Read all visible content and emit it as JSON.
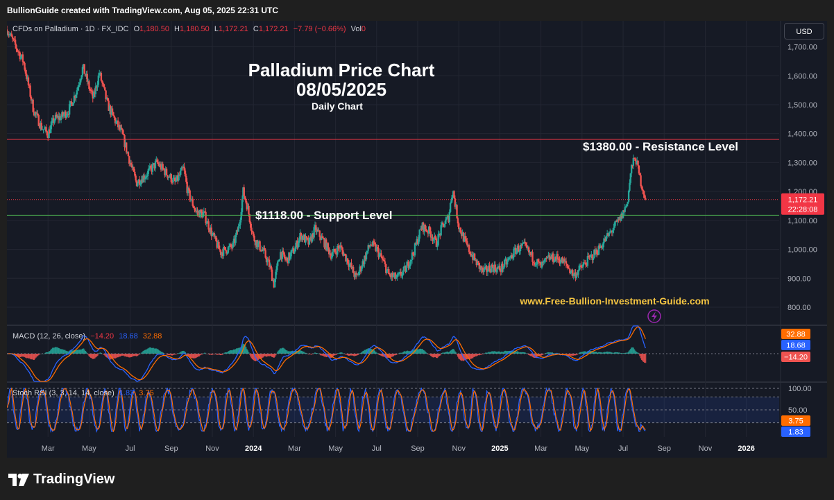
{
  "header": {
    "attribution": "BullionGuide created with TradingView.com, Aug 05, 2025 22:31 UTC"
  },
  "legend": {
    "symbol": "CFDs on Palladium · 1D · FX_IDC",
    "o_label": "O",
    "o": "1,180.50",
    "h_label": "H",
    "h": "1,180.50",
    "l_label": "L",
    "l": "1,172.21",
    "c_label": "C",
    "c": "1,172.21",
    "change": "−7.79 (−0.66%)",
    "vol_label": "Vol",
    "vol": "0"
  },
  "currency_button": "USD",
  "branding": {
    "name": "TradingView",
    "logo_icon": "tradingview-logo-icon"
  },
  "colors": {
    "up": "#26a69a",
    "down": "#ef5350",
    "resistance": "#f23645",
    "support": "#4caf50",
    "macd": "#2962ff",
    "signal": "#ff6d00",
    "stoch_k": "#2962ff",
    "stoch_d": "#ff6d00",
    "watermark": "#f5c542",
    "price_badge": "#f23645"
  },
  "chart_data": {
    "type": "candlestick",
    "title": "Palladium Price Chart",
    "subtitle_date": "08/05/2025",
    "subtitle_period": "Daily Chart",
    "watermark": "www.Free-Bullion-Investment-Guide.com",
    "currency": "USD",
    "y_ticks": [
      "1,700.00",
      "1,600.00",
      "1,500.00",
      "1,400.00",
      "1,300.00",
      "1,200.00",
      "1,100.00",
      "1,000.00",
      "900.00",
      "800.00"
    ],
    "ylim": [
      740,
      1790
    ],
    "x_ticks": [
      "Mar",
      "May",
      "Jul",
      "Sep",
      "Nov",
      "2024",
      "Mar",
      "May",
      "Jul",
      "Sep",
      "Nov",
      "2025",
      "Mar",
      "May",
      "Jul",
      "Sep",
      "Nov",
      "2026"
    ],
    "x_tick_months": [
      2,
      4,
      6,
      8,
      10,
      12,
      14,
      16,
      18,
      20,
      22,
      24,
      26,
      28,
      30,
      32,
      34,
      36
    ],
    "price_path": [
      [
        0,
        1760
      ],
      [
        0.8,
        1650
      ],
      [
        1.3,
        1480
      ],
      [
        1.7,
        1420
      ],
      [
        2.0,
        1400
      ],
      [
        2.3,
        1450
      ],
      [
        2.7,
        1460
      ],
      [
        3.0,
        1480
      ],
      [
        3.4,
        1550
      ],
      [
        3.7,
        1630
      ],
      [
        4.0,
        1560
      ],
      [
        4.2,
        1520
      ],
      [
        4.5,
        1610
      ],
      [
        4.9,
        1500
      ],
      [
        5.3,
        1440
      ],
      [
        5.6,
        1400
      ],
      [
        6.0,
        1300
      ],
      [
        6.3,
        1230
      ],
      [
        6.8,
        1260
      ],
      [
        7.3,
        1300
      ],
      [
        7.8,
        1260
      ],
      [
        8.2,
        1230
      ],
      [
        8.6,
        1280
      ],
      [
        8.8,
        1200
      ],
      [
        9.2,
        1130
      ],
      [
        9.6,
        1120
      ],
      [
        10.0,
        1050
      ],
      [
        10.4,
        990
      ],
      [
        10.7,
        1000
      ],
      [
        11.0,
        1010
      ],
      [
        11.3,
        1080
      ],
      [
        11.5,
        1200
      ],
      [
        11.7,
        1150
      ],
      [
        12.0,
        1040
      ],
      [
        12.5,
        990
      ],
      [
        12.8,
        940
      ],
      [
        13.0,
        880
      ],
      [
        13.3,
        990
      ],
      [
        13.6,
        960
      ],
      [
        14.0,
        1000
      ],
      [
        14.3,
        1050
      ],
      [
        14.7,
        1020
      ],
      [
        15.0,
        1070
      ],
      [
        15.4,
        1030
      ],
      [
        15.8,
        980
      ],
      [
        16.2,
        1010
      ],
      [
        16.6,
        960
      ],
      [
        17.0,
        900
      ],
      [
        17.3,
        950
      ],
      [
        17.7,
        1020
      ],
      [
        18.0,
        1000
      ],
      [
        18.3,
        960
      ],
      [
        18.6,
        910
      ],
      [
        19.0,
        900
      ],
      [
        19.4,
        930
      ],
      [
        19.8,
        990
      ],
      [
        20.2,
        1080
      ],
      [
        20.6,
        1060
      ],
      [
        20.9,
        1020
      ],
      [
        21.2,
        1080
      ],
      [
        21.5,
        1110
      ],
      [
        21.7,
        1210
      ],
      [
        22.0,
        1080
      ],
      [
        22.4,
        1010
      ],
      [
        22.8,
        960
      ],
      [
        23.2,
        920
      ],
      [
        23.6,
        940
      ],
      [
        24.0,
        930
      ],
      [
        24.4,
        960
      ],
      [
        24.8,
        1000
      ],
      [
        25.2,
        1010
      ],
      [
        25.6,
        970
      ],
      [
        26.0,
        940
      ],
      [
        26.4,
        970
      ],
      [
        26.8,
        970
      ],
      [
        27.2,
        950
      ],
      [
        27.6,
        910
      ],
      [
        28.0,
        940
      ],
      [
        28.4,
        970
      ],
      [
        28.8,
        1000
      ],
      [
        29.2,
        1040
      ],
      [
        29.6,
        1080
      ],
      [
        29.9,
        1110
      ],
      [
        30.2,
        1160
      ],
      [
        30.4,
        1280
      ],
      [
        30.6,
        1320
      ],
      [
        30.8,
        1250
      ],
      [
        31.1,
        1172.21
      ]
    ],
    "last_price": "1,172.21",
    "countdown": "22:28:08",
    "levels": [
      {
        "label": "$1380.00 - Resistance Level",
        "value": 1380
      },
      {
        "label": "$1118.00 - Support Level",
        "value": 1118
      }
    ],
    "macd": {
      "label": "MACD (12, 26, close)",
      "hist": "−14.20",
      "macd": "18.68",
      "signal": "32.88",
      "hist_value": -14.2,
      "macd_value": 18.68,
      "signal_value": 32.88
    },
    "stoch_rsi": {
      "label": "Stoch RSI (3, 3, 14, 14, close)",
      "k": "1.83",
      "d": "3.75",
      "k_value": 1.83,
      "d_value": 3.75,
      "levels": [
        "100.00",
        "50.00"
      ],
      "level_values": [
        100,
        50,
        80,
        20
      ]
    }
  }
}
